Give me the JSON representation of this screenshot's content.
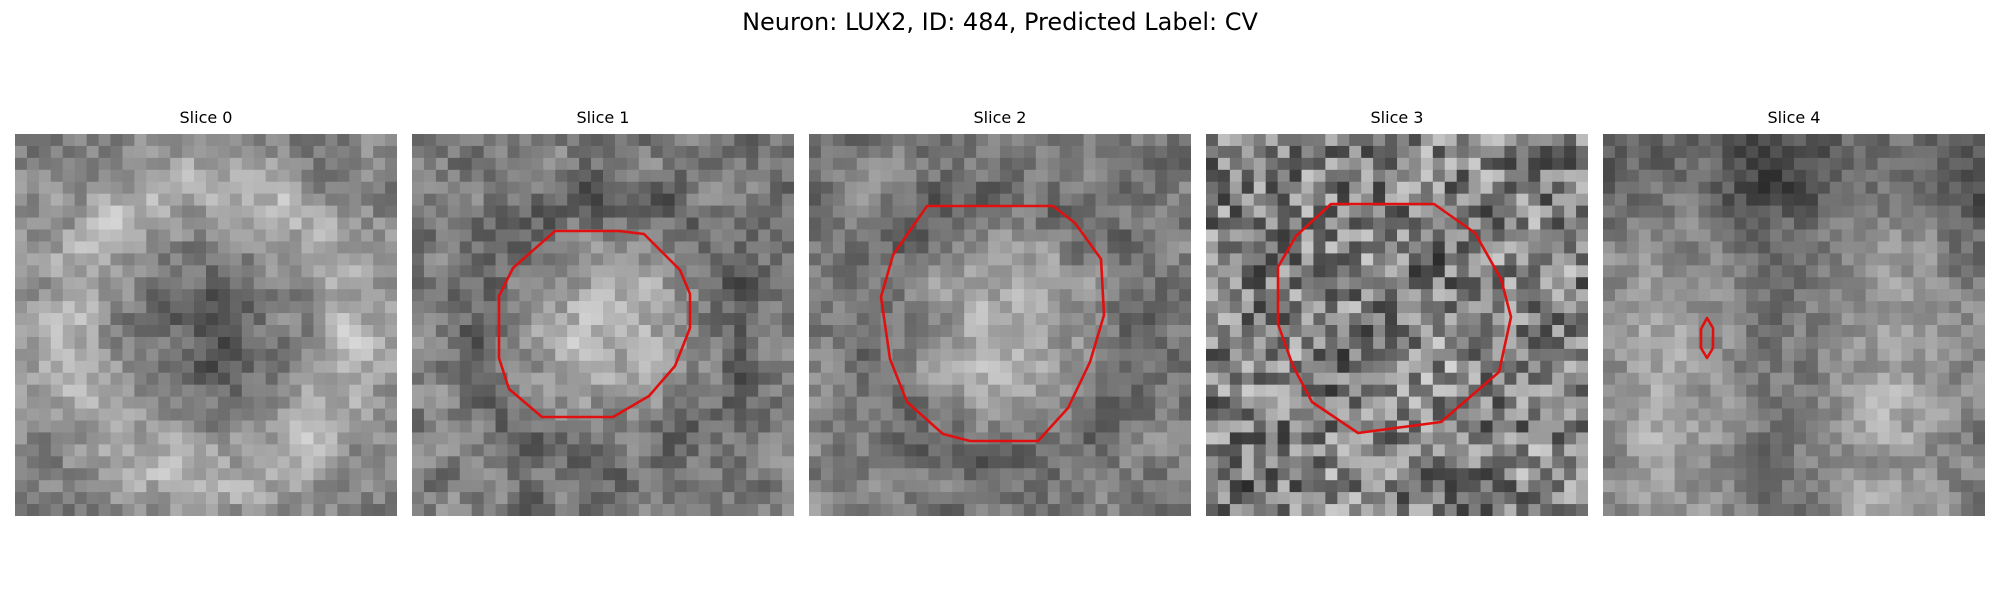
{
  "figure": {
    "title": "Neuron: LUX2, ID: 484, Predicted Label: CV"
  },
  "panels": [
    {
      "title": "Slice 0",
      "has_contour": false,
      "seed": 11,
      "contrast": 1.0,
      "pattern": "ring-dark"
    },
    {
      "title": "Slice 1",
      "has_contour": true,
      "seed": 23,
      "contrast": 1.1,
      "pattern": "bright-center"
    },
    {
      "title": "Slice 2",
      "has_contour": true,
      "seed": 37,
      "contrast": 1.0,
      "pattern": "bright-center"
    },
    {
      "title": "Slice 3",
      "has_contour": true,
      "seed": 51,
      "contrast": 1.25,
      "pattern": "noisy"
    },
    {
      "title": "Slice 4",
      "has_contour": true,
      "seed": 67,
      "contrast": 0.9,
      "pattern": "dark-top"
    }
  ],
  "colors": {
    "contour": "#e01010",
    "background": "#ffffff"
  }
}
